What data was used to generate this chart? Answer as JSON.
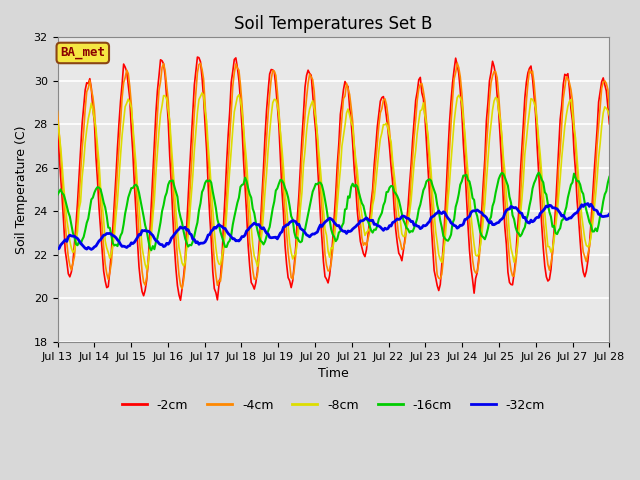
{
  "title": "Soil Temperatures Set B",
  "xlabel": "Time",
  "ylabel": "Soil Temperature (C)",
  "ylim": [
    18,
    32
  ],
  "series_colors": {
    "-2cm": "#ff0000",
    "-4cm": "#ff8800",
    "-8cm": "#dddd00",
    "-16cm": "#00cc00",
    "-32cm": "#0000ee"
  },
  "series_linewidths": {
    "-2cm": 1.2,
    "-4cm": 1.2,
    "-8cm": 1.2,
    "-16cm": 1.5,
    "-32cm": 2.0
  },
  "x_tick_labels": [
    "Jul 13",
    "Jul 14",
    "Jul 15",
    "Jul 16",
    "Jul 17",
    "Jul 18",
    "Jul 19",
    "Jul 20",
    "Jul 21",
    "Jul 22",
    "Jul 23",
    "Jul 24",
    "Jul 25",
    "Jul 26",
    "Jul 27",
    "Jul 28"
  ],
  "annotation_text": "BA_met",
  "background_color": "#e8e8e8",
  "grid_color": "#ffffff",
  "title_fontsize": 12,
  "tick_fontsize": 8,
  "label_fontsize": 9,
  "fig_facecolor": "#d8d8d8"
}
